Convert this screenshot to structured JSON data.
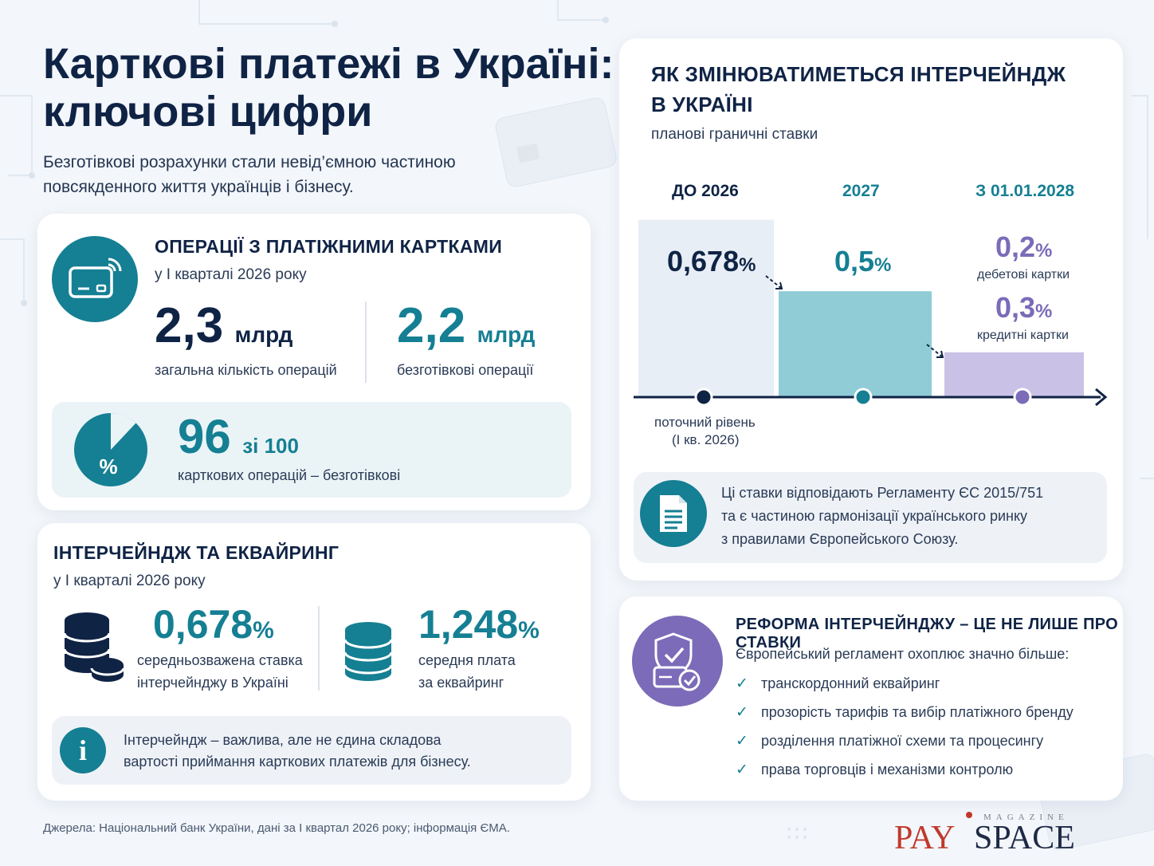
{
  "title": {
    "line1": "Карткові платежі в Україні:",
    "line2": "ключові цифри"
  },
  "subtitle": {
    "line1": "Безготівкові розрахунки стали невід’ємною частиною",
    "line2": "повсякденного життя українців і бізнесу."
  },
  "operations": {
    "heading": "ОПЕРАЦІЇ З ПЛАТІЖНИМИ КАРТКАМИ",
    "period": "у І кварталі 2026 року",
    "total": {
      "value": "2,3",
      "unit": "млрд",
      "caption": "загальна кількість операцій"
    },
    "cashless": {
      "value": "2,2",
      "unit": "млрд",
      "caption": "безготівкові операції"
    },
    "share": {
      "value": "96",
      "of": "зі 100",
      "caption": "карткових операцій – безготівкові",
      "symbol": "%",
      "fraction": 0.96
    }
  },
  "interchange": {
    "heading": "ІНТЕРЧЕЙНДЖ ТА ЕКВАЙРИНГ",
    "period": "у І кварталі 2026 року",
    "rate": {
      "value": "0,678",
      "unit": "%",
      "caption1": "середньозважена ставка",
      "caption2": "інтерчейнджу в Україні"
    },
    "acquiring": {
      "value": "1,248",
      "unit": "%",
      "caption1": "середня плата",
      "caption2": "за еквайринг"
    },
    "note_icon": "i",
    "note1": "Інтерчейндж – важлива, але не єдина складова",
    "note2": "вартості приймання карткових платежів для бізнесу."
  },
  "chart": {
    "heading1": "ЯК ЗМІНЮВАТИМЕТЬСЯ ІНТЕРЧЕЙНДЖ",
    "heading2": "В УКРАЇНІ",
    "subheading": "планові граничні ставки",
    "periods": [
      "ДО 2026",
      "2027",
      "З 01.01.2028"
    ],
    "current_label1": "поточний рівень",
    "current_label2": "(І кв. 2026)",
    "note1": "Ці ставки відповідають Регламенту ЄС 2015/751",
    "note2": "та є частиною гармонізації українського ринку",
    "note3": "з правилами Європейського Союзу."
  },
  "chart_data": {
    "type": "bar",
    "categories": [
      "ДО 2026",
      "2027",
      "З 01.01.2028"
    ],
    "series": [
      {
        "values": [
          0.678,
          0.5,
          0.3
        ]
      }
    ],
    "data_labels": [
      {
        "value": "0,678",
        "unit": "%"
      },
      {
        "value": "0,5",
        "unit": "%"
      },
      {
        "value": "0,2",
        "unit": "%",
        "label": "дебетові картки"
      },
      {
        "value": "0,3",
        "unit": "%",
        "label": "кредитні картки"
      }
    ],
    "colors": [
      "#e8eef6",
      "#8fccd6",
      "#c9c2e6"
    ],
    "ylim": [
      0,
      0.8
    ],
    "grid": false
  },
  "reform": {
    "heading": "РЕФОРМА ІНТЕРЧЕЙНДЖУ – ЦЕ НЕ ЛИШЕ ПРО СТАВКИ",
    "intro": "Європейський регламент охоплює значно більше:",
    "items": [
      "транскордонний еквайринг",
      "прозорість тарифів та вибір платіжного бренду",
      "розділення платіжної схеми та процесингу",
      "права торговців і механізми контролю"
    ]
  },
  "footer": "Джерела: Національний банк України, дані за І квартал 2026 року; інформація ЄМА.",
  "logo": {
    "magazine": "MAGAZINE",
    "pay": "PAY",
    "space": "SPACE"
  },
  "colors": {
    "navy": "#0f2345",
    "teal": "#157f93",
    "purple": "#7b6bb8"
  }
}
